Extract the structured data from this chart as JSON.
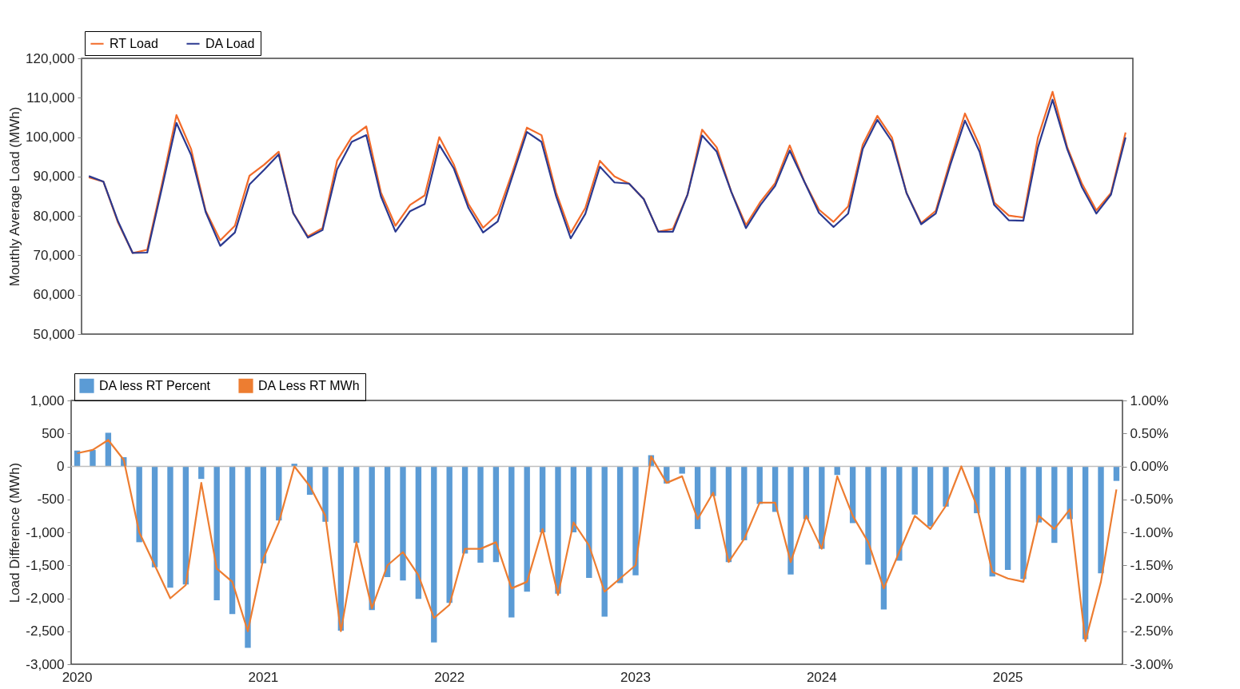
{
  "chart_data": [
    {
      "type": "line",
      "ylabel": "Mouthly Average Load (MWh)",
      "legend": "top left",
      "tick_labels": "y",
      "categories": [
        null,
        null,
        null,
        null,
        null,
        null,
        null,
        null,
        null,
        null,
        null,
        null,
        null,
        null,
        null,
        null,
        null,
        null,
        null,
        null,
        null,
        null,
        null,
        null,
        null,
        null,
        null,
        null,
        null,
        null,
        null,
        null,
        null,
        null,
        null,
        null,
        null,
        null,
        null,
        null,
        null,
        null,
        null,
        null,
        null,
        null,
        null,
        null,
        null,
        null,
        null,
        null,
        null,
        null,
        null,
        null,
        null,
        null,
        null,
        null,
        null,
        null,
        null,
        null,
        null,
        null,
        null,
        null,
        null,
        null,
        null,
        null
      ],
      "ylim": [
        50000,
        120000
      ],
      "yticks": [
        {
          "value": 50000,
          "label": "50,000"
        },
        {
          "value": 60000,
          "label": "60,000"
        },
        {
          "value": 70000,
          "label": "70,000"
        },
        {
          "value": 80000,
          "label": "80,000"
        },
        {
          "value": 90000,
          "label": "90,000"
        },
        {
          "value": 100000,
          "label": "100,000"
        },
        {
          "value": 110000,
          "label": "110,000"
        },
        {
          "value": 120000,
          "label": "120,000"
        }
      ],
      "series": [
        {
          "name": "RT Load",
          "color": "#f26b2a",
          "values": [
            89800,
            88700,
            78300,
            70600,
            71400,
            88000,
            105600,
            97000,
            81300,
            73800,
            77500,
            90200,
            93000,
            96300,
            80700,
            74800,
            76900,
            94000,
            100000,
            102700,
            86000,
            77500,
            82800,
            85200,
            100000,
            93000,
            83000,
            77000,
            80500,
            91000,
            102400,
            100500,
            86000,
            75700,
            82000,
            94000,
            90000,
            88200,
            84300,
            76000,
            76700,
            85400,
            101900,
            97400,
            86100,
            77700,
            83600,
            88300,
            97900,
            88700,
            81600,
            78500,
            82400,
            98100,
            105400,
            99900,
            85800,
            78200,
            81300,
            94000,
            106000,
            97900,
            83400,
            80100,
            79600,
            99900,
            111500,
            97500,
            88300,
            81400,
            85800,
            101200
          ]
        },
        {
          "name": "DA Load",
          "color": "#2b3990",
          "values": [
            90100,
            88700,
            78600,
            70600,
            70700,
            87000,
            103600,
            95500,
            81000,
            72400,
            75800,
            88000,
            91700,
            95600,
            80700,
            74500,
            76400,
            91800,
            98800,
            100500,
            85000,
            76000,
            81200,
            83000,
            98000,
            92000,
            82000,
            75800,
            78600,
            90000,
            101300,
            98800,
            85000,
            74300,
            80500,
            92500,
            88500,
            88200,
            84300,
            76000,
            76000,
            85400,
            100400,
            96300,
            86100,
            76900,
            82800,
            87600,
            96600,
            88700,
            80800,
            77200,
            80600,
            97000,
            104400,
            98900,
            85800,
            77900,
            80600,
            93000,
            104200,
            96300,
            82800,
            78900,
            78800,
            97400,
            109500,
            97000,
            87400,
            80600,
            85400,
            99900
          ]
        }
      ]
    },
    {
      "type": "bar",
      "ylabel": "Load Difference (MWh)",
      "legend": "top left",
      "categories": [
        "2020",
        null,
        null,
        null,
        null,
        null,
        null,
        null,
        null,
        null,
        null,
        null,
        "2021",
        null,
        null,
        null,
        null,
        null,
        null,
        null,
        null,
        null,
        null,
        null,
        "2022",
        null,
        null,
        null,
        null,
        null,
        null,
        null,
        null,
        null,
        null,
        null,
        "2023",
        null,
        null,
        null,
        null,
        null,
        null,
        null,
        null,
        null,
        null,
        null,
        "2024",
        null,
        null,
        null,
        null,
        null,
        null,
        null,
        null,
        null,
        null,
        null,
        "2025",
        null,
        null,
        null,
        null,
        null,
        null,
        null
      ],
      "ylim": [
        -3000,
        1000
      ],
      "yticks": [
        {
          "value": -3000,
          "label": "-3,000"
        },
        {
          "value": -2500,
          "label": "-2,500"
        },
        {
          "value": -2000,
          "label": "-2,000"
        },
        {
          "value": -1500,
          "label": "-1,500"
        },
        {
          "value": -1000,
          "label": "-1,000"
        },
        -500,
        0,
        500,
        {
          "value": 1000,
          "label": "1,000"
        }
      ],
      "y2lim": [
        -3,
        1
      ],
      "y2ticks": [
        {
          "value": -3,
          "label": "-3.00%"
        },
        {
          "value": -2.5,
          "label": "-2.50%"
        },
        {
          "value": -2,
          "label": "-2.00%"
        },
        {
          "value": -1.5,
          "label": "-1.50%"
        },
        {
          "value": -1,
          "label": "-1.00%"
        },
        {
          "value": -0.5,
          "label": "-0.50%"
        },
        {
          "value": 0,
          "label": "0.00%"
        },
        {
          "value": 0.5,
          "label": "0.50%"
        },
        {
          "value": 1,
          "label": "1.00%"
        }
      ],
      "ref_lines": [
        {
          "axis": "y",
          "value": 0,
          "color": "#bfbfbf"
        }
      ],
      "series": [
        {
          "name": "DA less RT Percent",
          "type": "bar",
          "axis": "y2",
          "color": "#5b9bd5",
          "values": [
            0.24,
            0.25,
            0.51,
            0.14,
            -1.15,
            -1.53,
            -1.84,
            -1.79,
            -0.19,
            -2.03,
            -2.24,
            -2.75,
            -1.47,
            -0.82,
            0.04,
            -0.43,
            -0.84,
            -2.49,
            -1.16,
            -2.18,
            -1.68,
            -1.73,
            -2.01,
            -2.67,
            -2.07,
            -1.32,
            -1.46,
            -1.45,
            -2.29,
            -1.9,
            -1.0,
            -1.93,
            -1.0,
            -1.69,
            -2.28,
            -1.77,
            -1.65,
            0.17,
            -0.26,
            -0.11,
            -0.95,
            -0.45,
            -1.45,
            -1.12,
            -0.57,
            -0.69,
            -1.64,
            -0.8,
            -1.25,
            -0.13,
            -0.86,
            -1.49,
            -2.17,
            -1.43,
            -0.73,
            -0.91,
            -0.61,
            0,
            -0.71,
            -1.67,
            -1.57,
            -1.71,
            -0.85,
            -1.16,
            -0.8,
            -2.62,
            -1.62,
            -0.22
          ]
        },
        {
          "name": "DA Less RT MWh",
          "type": "line",
          "color": "#ed7d31",
          "values": [
            200,
            250,
            400,
            100,
            -1000,
            -1500,
            -2000,
            -1800,
            -250,
            -1550,
            -1750,
            -2500,
            -1400,
            -850,
            0,
            -300,
            -750,
            -2500,
            -1150,
            -2150,
            -1500,
            -1300,
            -1650,
            -2300,
            -2100,
            -1250,
            -1250,
            -1150,
            -1850,
            -1750,
            -950,
            -1950,
            -850,
            -1200,
            -1900,
            -1700,
            -1500,
            150,
            -250,
            -150,
            -800,
            -400,
            -1450,
            -1100,
            -550,
            -550,
            -1450,
            -750,
            -1250,
            -150,
            -750,
            -1150,
            -1850,
            -1300,
            -750,
            -950,
            -600,
            0,
            -600,
            -1600,
            -1700,
            -1750,
            -750,
            -950,
            -650,
            -2650,
            -1750,
            -350
          ]
        }
      ]
    }
  ]
}
